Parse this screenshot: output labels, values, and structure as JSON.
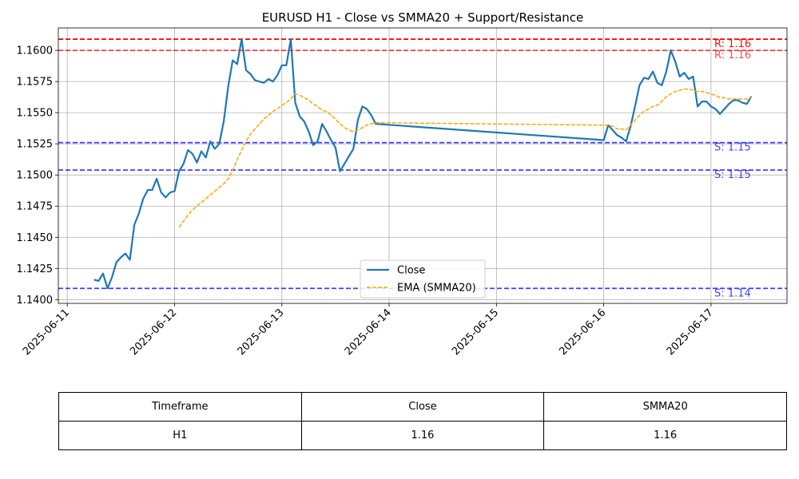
{
  "chart_data": {
    "type": "line",
    "title": "EURUSD H1 - Close vs SMMA20 + Support/Resistance",
    "xlabel": "",
    "ylabel": "",
    "xlim": [
      "2025-06-10T22:00",
      "2025-06-17T17:00"
    ],
    "ylim": [
      1.1397,
      1.1618
    ],
    "x_ticks": [
      "2025-06-11",
      "2025-06-12",
      "2025-06-13",
      "2025-06-14",
      "2025-06-15",
      "2025-06-16",
      "2025-06-17"
    ],
    "y_ticks": [
      "1.1400",
      "1.1425",
      "1.1450",
      "1.1475",
      "1.1500",
      "1.1525",
      "1.1550",
      "1.1575",
      "1.1600"
    ],
    "grid": true,
    "legend_position": "lower center",
    "series": [
      {
        "name": "Close",
        "color": "#1f77b4",
        "style": "solid",
        "x": [
          "2025-06-11T06:00",
          "2025-06-11T07:00",
          "2025-06-11T08:00",
          "2025-06-11T09:00",
          "2025-06-11T10:00",
          "2025-06-11T11:00",
          "2025-06-11T12:00",
          "2025-06-11T13:00",
          "2025-06-11T14:00",
          "2025-06-11T15:00",
          "2025-06-11T16:00",
          "2025-06-11T17:00",
          "2025-06-11T18:00",
          "2025-06-11T19:00",
          "2025-06-11T20:00",
          "2025-06-11T21:00",
          "2025-06-11T22:00",
          "2025-06-11T23:00",
          "2025-06-12T00:00",
          "2025-06-12T01:00",
          "2025-06-12T02:00",
          "2025-06-12T03:00",
          "2025-06-12T04:00",
          "2025-06-12T05:00",
          "2025-06-12T06:00",
          "2025-06-12T07:00",
          "2025-06-12T08:00",
          "2025-06-12T09:00",
          "2025-06-12T10:00",
          "2025-06-12T11:00",
          "2025-06-12T12:00",
          "2025-06-12T13:00",
          "2025-06-12T14:00",
          "2025-06-12T15:00",
          "2025-06-12T16:00",
          "2025-06-12T17:00",
          "2025-06-12T18:00",
          "2025-06-12T19:00",
          "2025-06-12T20:00",
          "2025-06-12T21:00",
          "2025-06-12T22:00",
          "2025-06-12T23:00",
          "2025-06-13T00:00",
          "2025-06-13T01:00",
          "2025-06-13T02:00",
          "2025-06-13T03:00",
          "2025-06-13T04:00",
          "2025-06-13T05:00",
          "2025-06-13T06:00",
          "2025-06-13T07:00",
          "2025-06-13T08:00",
          "2025-06-13T09:00",
          "2025-06-13T10:00",
          "2025-06-13T11:00",
          "2025-06-13T12:00",
          "2025-06-13T13:00",
          "2025-06-13T14:00",
          "2025-06-13T15:00",
          "2025-06-13T16:00",
          "2025-06-13T17:00",
          "2025-06-13T18:00",
          "2025-06-13T19:00",
          "2025-06-13T20:00",
          "2025-06-13T21:00",
          "2025-06-16T00:00",
          "2025-06-16T01:00",
          "2025-06-16T02:00",
          "2025-06-16T03:00",
          "2025-06-16T04:00",
          "2025-06-16T05:00",
          "2025-06-16T06:00",
          "2025-06-16T07:00",
          "2025-06-16T08:00",
          "2025-06-16T09:00",
          "2025-06-16T10:00",
          "2025-06-16T11:00",
          "2025-06-16T12:00",
          "2025-06-16T13:00",
          "2025-06-16T14:00",
          "2025-06-16T15:00",
          "2025-06-16T16:00",
          "2025-06-16T17:00",
          "2025-06-16T18:00",
          "2025-06-16T19:00",
          "2025-06-16T20:00",
          "2025-06-16T21:00",
          "2025-06-16T22:00",
          "2025-06-16T23:00",
          "2025-06-17T00:00",
          "2025-06-17T01:00",
          "2025-06-17T02:00",
          "2025-06-17T03:00",
          "2025-06-17T04:00",
          "2025-06-17T05:00",
          "2025-06-17T06:00",
          "2025-06-17T07:00",
          "2025-06-17T08:00",
          "2025-06-17T09:00"
        ],
        "values": [
          1.1416,
          1.1415,
          1.1421,
          1.1409,
          1.1418,
          1.143,
          1.1434,
          1.1437,
          1.1432,
          1.146,
          1.1469,
          1.1481,
          1.1488,
          1.1488,
          1.1497,
          1.1486,
          1.1482,
          1.1486,
          1.1487,
          1.1503,
          1.1509,
          1.152,
          1.1517,
          1.151,
          1.1519,
          1.1514,
          1.1527,
          1.1521,
          1.1525,
          1.1543,
          1.1571,
          1.1592,
          1.1589,
          1.1609,
          1.1584,
          1.1581,
          1.1576,
          1.1575,
          1.1574,
          1.1577,
          1.1575,
          1.158,
          1.1588,
          1.1588,
          1.1609,
          1.1558,
          1.1547,
          1.1543,
          1.1535,
          1.1524,
          1.1527,
          1.1541,
          1.1535,
          1.1528,
          1.1522,
          1.1503,
          1.1509,
          1.1515,
          1.1521,
          1.1544,
          1.1555,
          1.1553,
          1.1548,
          1.1541,
          1.1528,
          1.154,
          1.1536,
          1.1532,
          1.153,
          1.1527,
          1.1539,
          1.1555,
          1.1572,
          1.1578,
          1.1577,
          1.1583,
          1.1574,
          1.1572,
          1.1583,
          1.16,
          1.1591,
          1.1579,
          1.1582,
          1.1577,
          1.1579,
          1.1555,
          1.1559,
          1.1559,
          1.1555,
          1.1553,
          1.1549,
          1.1553,
          1.1557,
          1.156,
          1.156,
          1.1558,
          1.1557,
          1.1563
        ]
      },
      {
        "name": "EMA (SMMA20)",
        "color": "#ffa500",
        "style": "dashed",
        "x": [
          "2025-06-12T01:00",
          "2025-06-12T02:00",
          "2025-06-12T03:00",
          "2025-06-12T04:00",
          "2025-06-12T05:00",
          "2025-06-12T06:00",
          "2025-06-12T07:00",
          "2025-06-12T08:00",
          "2025-06-12T09:00",
          "2025-06-12T10:00",
          "2025-06-12T11:00",
          "2025-06-12T12:00",
          "2025-06-12T13:00",
          "2025-06-12T14:00",
          "2025-06-12T15:00",
          "2025-06-12T16:00",
          "2025-06-12T17:00",
          "2025-06-12T18:00",
          "2025-06-12T19:00",
          "2025-06-12T20:00",
          "2025-06-12T21:00",
          "2025-06-12T22:00",
          "2025-06-12T23:00",
          "2025-06-13T00:00",
          "2025-06-13T01:00",
          "2025-06-13T02:00",
          "2025-06-13T03:00",
          "2025-06-13T04:00",
          "2025-06-13T05:00",
          "2025-06-13T06:00",
          "2025-06-13T07:00",
          "2025-06-13T08:00",
          "2025-06-13T09:00",
          "2025-06-13T10:00",
          "2025-06-13T11:00",
          "2025-06-13T12:00",
          "2025-06-13T13:00",
          "2025-06-13T14:00",
          "2025-06-13T15:00",
          "2025-06-13T16:00",
          "2025-06-13T17:00",
          "2025-06-13T18:00",
          "2025-06-13T19:00",
          "2025-06-13T20:00",
          "2025-06-13T21:00",
          "2025-06-16T00:00",
          "2025-06-16T01:00",
          "2025-06-16T02:00",
          "2025-06-16T03:00",
          "2025-06-16T04:00",
          "2025-06-16T05:00",
          "2025-06-16T06:00",
          "2025-06-16T07:00",
          "2025-06-16T08:00",
          "2025-06-16T09:00",
          "2025-06-16T10:00",
          "2025-06-16T11:00",
          "2025-06-16T12:00",
          "2025-06-16T13:00",
          "2025-06-16T14:00",
          "2025-06-16T15:00",
          "2025-06-16T16:00",
          "2025-06-16T17:00",
          "2025-06-16T18:00",
          "2025-06-16T19:00",
          "2025-06-16T20:00",
          "2025-06-16T21:00",
          "2025-06-16T22:00",
          "2025-06-16T23:00",
          "2025-06-17T00:00",
          "2025-06-17T01:00",
          "2025-06-17T02:00",
          "2025-06-17T03:00",
          "2025-06-17T04:00",
          "2025-06-17T05:00",
          "2025-06-17T06:00",
          "2025-06-17T07:00",
          "2025-06-17T08:00",
          "2025-06-17T09:00"
        ],
        "values": [
          1.1458,
          1.1463,
          1.1468,
          1.1472,
          1.1475,
          1.1478,
          1.1481,
          1.1484,
          1.1487,
          1.149,
          1.1493,
          1.1497,
          1.1504,
          1.1512,
          1.152,
          1.1527,
          1.1533,
          1.1537,
          1.1541,
          1.1545,
          1.1548,
          1.1551,
          1.1553,
          1.1556,
          1.1558,
          1.1561,
          1.1565,
          1.1564,
          1.1562,
          1.156,
          1.1557,
          1.1555,
          1.1552,
          1.1551,
          1.1548,
          1.1545,
          1.1541,
          1.1538,
          1.1536,
          1.1535,
          1.1536,
          1.1538,
          1.154,
          1.1541,
          1.1542,
          1.154,
          1.154,
          1.1539,
          1.1537,
          1.1537,
          1.1536,
          1.154,
          1.1544,
          1.1548,
          1.1551,
          1.1553,
          1.1555,
          1.1556,
          1.1559,
          1.1563,
          1.1565,
          1.1567,
          1.1568,
          1.1569,
          1.1569,
          1.1568,
          1.1567,
          1.1567,
          1.1566,
          1.1565,
          1.1564,
          1.1562,
          1.1562,
          1.1561,
          1.1561,
          1.1561,
          1.1561,
          1.1561,
          1.1562
        ]
      }
    ],
    "reference_lines": [
      {
        "kind": "resistance",
        "value": 1.1609,
        "label": "R: 1.16",
        "color": "#ff0000",
        "alpha": 0.95
      },
      {
        "kind": "resistance",
        "value": 1.16,
        "label": "R: 1.16",
        "color": "#ff0000",
        "alpha": 0.7
      },
      {
        "kind": "support",
        "value": 1.1526,
        "label": "S: 1.15",
        "color": "#0000ff",
        "alpha": 0.75
      },
      {
        "kind": "support",
        "value": 1.1504,
        "label": "S: 1.15",
        "color": "#0000ff",
        "alpha": 0.75
      },
      {
        "kind": "support",
        "value": 1.1409,
        "label": "S: 1.14",
        "color": "#0000ff",
        "alpha": 0.75
      }
    ]
  },
  "table": {
    "headers": [
      "Timeframe",
      "Close",
      "SMMA20"
    ],
    "rows": [
      [
        "H1",
        "1.16",
        "1.16"
      ]
    ]
  }
}
